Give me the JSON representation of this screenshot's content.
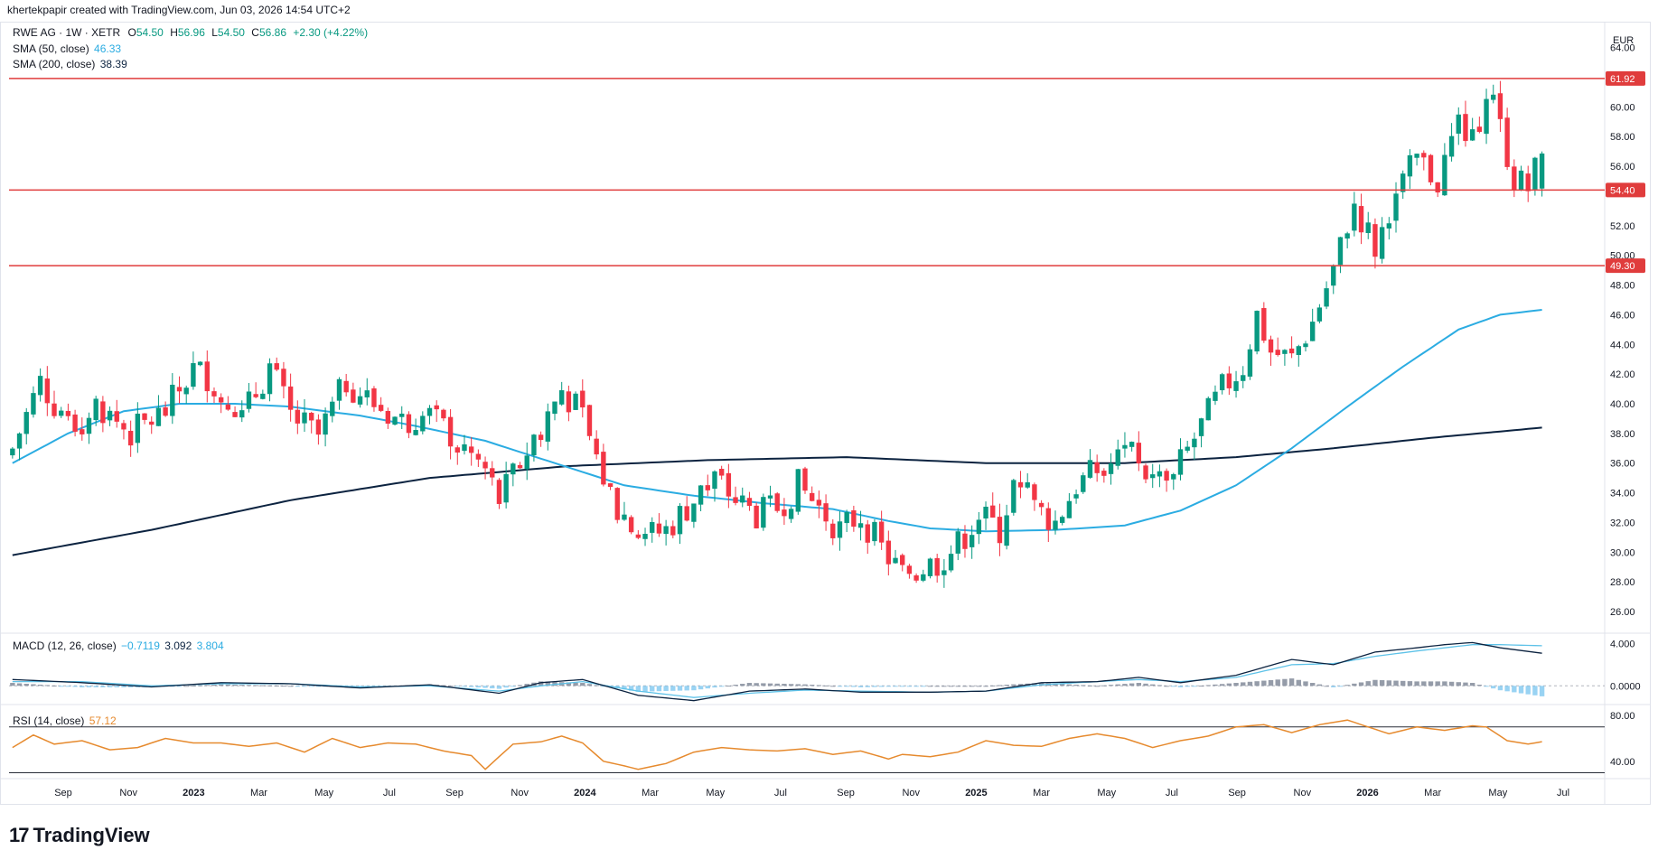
{
  "header": {
    "text": "khertekpapir created with TradingView.com, Jun 03, 2026 14:54 UTC+2"
  },
  "brand": {
    "mark": "17",
    "name": "TradingView"
  },
  "ohlc_legend": {
    "symbol": "RWE AG · 1W · XETR",
    "o_label": "O",
    "o": "54.50",
    "h_label": "H",
    "h": "56.96",
    "l_label": "L",
    "l": "54.50",
    "c_label": "C",
    "c": "56.86",
    "change": "+2.30 (+4.22%)"
  },
  "sma50_legend": {
    "label": "SMA (50, close)",
    "value": "46.33"
  },
  "sma200_legend": {
    "label": "SMA (200, close)",
    "value": "38.39"
  },
  "macd_legend": {
    "label": "MACD (12, 26, close)",
    "v1": "−0.7119",
    "v2": "3.092",
    "v3": "3.804"
  },
  "rsi_legend": {
    "label": "RSI (14, close)",
    "value": "57.12"
  },
  "currency": "EUR",
  "colors": {
    "up": "#089981",
    "down": "#f23645",
    "sma50": "#2bace2",
    "sma200": "#0c2340",
    "hline": "#e03c3c",
    "rsi": "#e68a2e",
    "macd": "#0c2340",
    "signal": "#5ec2e8",
    "hist_pos": "#7b8394",
    "hist_neg": "#7fc8f0"
  },
  "chart_data": {
    "type": "candlestick",
    "price_axis": {
      "ticks": [
        "64.00",
        "60.00",
        "58.00",
        "56.00",
        "52.00",
        "50.00",
        "48.00",
        "46.00",
        "44.00",
        "42.00",
        "40.00",
        "38.00",
        "36.00",
        "34.00",
        "32.00",
        "30.00",
        "28.00",
        "26.00"
      ],
      "ylim": [
        24.6,
        65.5
      ]
    },
    "time_axis": [
      "Sep",
      "Nov",
      "2023",
      "Mar",
      "May",
      "Jul",
      "Sep",
      "Nov",
      "2024",
      "Mar",
      "May",
      "Jul",
      "Sep",
      "Nov",
      "2025",
      "Mar",
      "May",
      "Jul",
      "Sep",
      "Nov",
      "2026",
      "Mar",
      "May",
      "Jul"
    ],
    "bold_ticks": [
      "2023",
      "2024",
      "2025",
      "2026"
    ],
    "horizontal_levels": [
      {
        "value": 61.92,
        "label": "61.92"
      },
      {
        "value": 54.4,
        "label": "54.40"
      },
      {
        "value": 49.3,
        "label": "49.30"
      }
    ],
    "close_path": [
      [
        0,
        37.0
      ],
      [
        4,
        41.5
      ],
      [
        8,
        38.5
      ],
      [
        12,
        40.0
      ],
      [
        17,
        38.0
      ],
      [
        22,
        39.5
      ],
      [
        26,
        42.3
      ],
      [
        30,
        41.5
      ],
      [
        33,
        39.0
      ],
      [
        37,
        42.5
      ],
      [
        40,
        39.2
      ],
      [
        44,
        37.8
      ],
      [
        48,
        41.5
      ],
      [
        52,
        40.0
      ],
      [
        56,
        38.8
      ],
      [
        60,
        39.2
      ],
      [
        64,
        37.5
      ],
      [
        68,
        35.5
      ],
      [
        70,
        33.5
      ],
      [
        73,
        36.0
      ],
      [
        76,
        38.5
      ],
      [
        79,
        41.0
      ],
      [
        82,
        39.0
      ],
      [
        85,
        35.0
      ],
      [
        88,
        32.0
      ],
      [
        91,
        31.0
      ],
      [
        94,
        31.5
      ],
      [
        98,
        33.5
      ],
      [
        101,
        35.0
      ],
      [
        104,
        33.5
      ],
      [
        107,
        32.5
      ],
      [
        110,
        33.0
      ],
      [
        113,
        34.5
      ],
      [
        116,
        33.0
      ],
      [
        119,
        31.5
      ],
      [
        122,
        32.5
      ],
      [
        125,
        30.2
      ],
      [
        128,
        28.5
      ],
      [
        131,
        29.0
      ],
      [
        133,
        29.3
      ],
      [
        136,
        30.5
      ],
      [
        139,
        32.5
      ],
      [
        142,
        31.5
      ],
      [
        144,
        34.5
      ],
      [
        147,
        33.0
      ],
      [
        150,
        32.0
      ],
      [
        153,
        34.5
      ],
      [
        156,
        35.5
      ],
      [
        159,
        36.5
      ],
      [
        162,
        35.8
      ],
      [
        165,
        34.5
      ],
      [
        168,
        36.0
      ],
      [
        171,
        38.5
      ],
      [
        174,
        41.0
      ],
      [
        177,
        42.5
      ],
      [
        179,
        46.0
      ],
      [
        181,
        43.5
      ],
      [
        184,
        43.0
      ],
      [
        187,
        45.5
      ],
      [
        190,
        49.0
      ],
      [
        193,
        53.5
      ],
      [
        196,
        50.5
      ],
      [
        199,
        54.0
      ],
      [
        202,
        56.5
      ],
      [
        205,
        55.0
      ],
      [
        208,
        59.0
      ],
      [
        210,
        57.5
      ],
      [
        212,
        61.6
      ],
      [
        214,
        58.5
      ],
      [
        216,
        55.2
      ],
      [
        218,
        54.5
      ],
      [
        220,
        56.86
      ]
    ],
    "n_bars": 221,
    "sma50": [
      [
        0,
        36.0
      ],
      [
        8,
        38.0
      ],
      [
        16,
        39.5
      ],
      [
        24,
        40.0
      ],
      [
        32,
        40.0
      ],
      [
        40,
        39.8
      ],
      [
        50,
        39.2
      ],
      [
        58,
        38.5
      ],
      [
        68,
        37.5
      ],
      [
        78,
        36.0
      ],
      [
        88,
        34.5
      ],
      [
        98,
        33.8
      ],
      [
        108,
        33.3
      ],
      [
        118,
        32.9
      ],
      [
        126,
        32.1
      ],
      [
        132,
        31.6
      ],
      [
        140,
        31.4
      ],
      [
        150,
        31.5
      ],
      [
        160,
        31.8
      ],
      [
        168,
        32.8
      ],
      [
        176,
        34.5
      ],
      [
        184,
        37.0
      ],
      [
        192,
        39.8
      ],
      [
        200,
        42.5
      ],
      [
        208,
        45.0
      ],
      [
        214,
        46.0
      ],
      [
        220,
        46.33
      ]
    ],
    "sma200": [
      [
        0,
        29.8
      ],
      [
        20,
        31.5
      ],
      [
        40,
        33.5
      ],
      [
        60,
        35.0
      ],
      [
        80,
        35.8
      ],
      [
        100,
        36.2
      ],
      [
        120,
        36.4
      ],
      [
        140,
        36.0
      ],
      [
        160,
        36.0
      ],
      [
        176,
        36.4
      ],
      [
        190,
        37.0
      ],
      [
        204,
        37.7
      ],
      [
        220,
        38.39
      ]
    ],
    "macd_axis": {
      "ticks": [
        "4.000",
        "0.0000"
      ],
      "ylim": [
        -1.6,
        4.9
      ]
    },
    "rsi_axis": {
      "ticks": [
        "80.00",
        "40.00"
      ],
      "bands": [
        70,
        30
      ],
      "ylim": [
        28,
        88
      ]
    },
    "macd": [
      [
        0,
        0.6
      ],
      [
        10,
        0.3
      ],
      [
        20,
        -0.1
      ],
      [
        30,
        0.3
      ],
      [
        40,
        0.2
      ],
      [
        50,
        -0.2
      ],
      [
        60,
        0.1
      ],
      [
        70,
        -0.7
      ],
      [
        76,
        0.3
      ],
      [
        82,
        0.6
      ],
      [
        90,
        -0.9
      ],
      [
        98,
        -1.4
      ],
      [
        106,
        -0.5
      ],
      [
        114,
        -0.3
      ],
      [
        122,
        -0.6
      ],
      [
        132,
        -0.6
      ],
      [
        140,
        -0.5
      ],
      [
        148,
        0.3
      ],
      [
        156,
        0.4
      ],
      [
        162,
        0.8
      ],
      [
        168,
        0.3
      ],
      [
        176,
        1.0
      ],
      [
        184,
        2.5
      ],
      [
        190,
        2.0
      ],
      [
        196,
        3.2
      ],
      [
        202,
        3.6
      ],
      [
        206,
        3.9
      ],
      [
        210,
        4.1
      ],
      [
        214,
        3.6
      ],
      [
        220,
        3.09
      ]
    ],
    "signal": [
      [
        0,
        0.4
      ],
      [
        10,
        0.4
      ],
      [
        20,
        0.0
      ],
      [
        30,
        0.2
      ],
      [
        40,
        0.2
      ],
      [
        50,
        -0.1
      ],
      [
        60,
        0.0
      ],
      [
        70,
        -0.5
      ],
      [
        76,
        0.0
      ],
      [
        82,
        0.4
      ],
      [
        90,
        -0.5
      ],
      [
        98,
        -1.1
      ],
      [
        106,
        -0.7
      ],
      [
        114,
        -0.4
      ],
      [
        122,
        -0.5
      ],
      [
        132,
        -0.6
      ],
      [
        140,
        -0.5
      ],
      [
        148,
        0.1
      ],
      [
        156,
        0.4
      ],
      [
        162,
        0.6
      ],
      [
        168,
        0.4
      ],
      [
        176,
        0.8
      ],
      [
        184,
        2.0
      ],
      [
        190,
        2.1
      ],
      [
        196,
        2.8
      ],
      [
        202,
        3.3
      ],
      [
        206,
        3.6
      ],
      [
        210,
        3.9
      ],
      [
        214,
        3.9
      ],
      [
        220,
        3.8
      ]
    ],
    "rsi": [
      [
        0,
        52
      ],
      [
        3,
        63
      ],
      [
        6,
        55
      ],
      [
        10,
        58
      ],
      [
        14,
        50
      ],
      [
        18,
        52
      ],
      [
        22,
        60
      ],
      [
        26,
        56
      ],
      [
        30,
        56
      ],
      [
        34,
        53
      ],
      [
        38,
        56
      ],
      [
        42,
        48
      ],
      [
        46,
        60
      ],
      [
        50,
        52
      ],
      [
        54,
        56
      ],
      [
        58,
        55
      ],
      [
        62,
        49
      ],
      [
        66,
        45
      ],
      [
        68,
        33
      ],
      [
        72,
        55
      ],
      [
        76,
        57
      ],
      [
        79,
        62
      ],
      [
        82,
        56
      ],
      [
        85,
        40
      ],
      [
        88,
        36
      ],
      [
        90,
        33
      ],
      [
        94,
        38
      ],
      [
        98,
        48
      ],
      [
        102,
        52
      ],
      [
        106,
        50
      ],
      [
        110,
        49
      ],
      [
        114,
        51
      ],
      [
        118,
        46
      ],
      [
        122,
        49
      ],
      [
        126,
        42
      ],
      [
        128,
        46
      ],
      [
        132,
        44
      ],
      [
        136,
        48
      ],
      [
        140,
        58
      ],
      [
        144,
        54
      ],
      [
        148,
        53
      ],
      [
        152,
        60
      ],
      [
        156,
        64
      ],
      [
        160,
        60
      ],
      [
        164,
        52
      ],
      [
        168,
        58
      ],
      [
        172,
        62
      ],
      [
        176,
        70
      ],
      [
        180,
        72
      ],
      [
        184,
        65
      ],
      [
        188,
        72
      ],
      [
        192,
        76
      ],
      [
        195,
        70
      ],
      [
        198,
        64
      ],
      [
        202,
        70
      ],
      [
        206,
        67
      ],
      [
        210,
        71
      ],
      [
        212,
        70
      ],
      [
        215,
        58
      ],
      [
        218,
        55
      ],
      [
        220,
        57.12
      ]
    ]
  }
}
